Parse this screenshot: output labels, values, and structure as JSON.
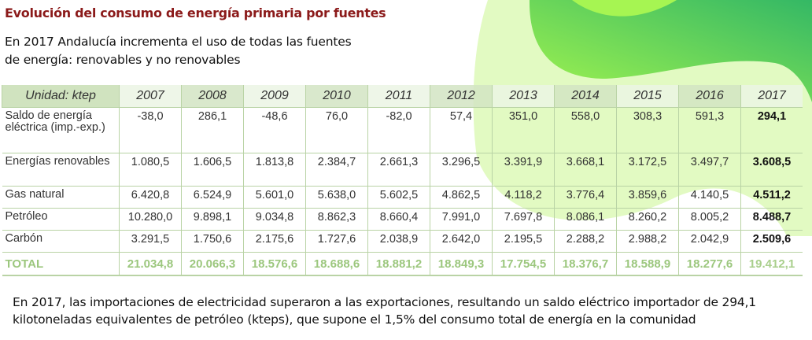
{
  "title": "Evolución del consumo de energía primaria por fuentes",
  "subtitle": [
    "En 2017 Andalucía incrementa el uso de todas las fuentes",
    "de energía: renovables y no renovables"
  ],
  "table": {
    "unit_header": "Unidad: ktep",
    "years": [
      "2007",
      "2008",
      "2009",
      "2010",
      "2011",
      "2012",
      "2013",
      "2014",
      "2015",
      "2016",
      "2017"
    ],
    "rows": [
      {
        "label": "Saldo de energía eléctrica (imp.-exp.)",
        "values": [
          "-38,0",
          "286,1",
          "-48,6",
          "76,0",
          "-82,0",
          "57,4",
          "351,0",
          "558,0",
          "308,3",
          "591,3",
          "294,1"
        ]
      },
      {
        "label": "Energías renovables",
        "values": [
          "1.080,5",
          "1.606,5",
          "1.813,8",
          "2.384,7",
          "2.661,3",
          "3.296,5",
          "3.391,9",
          "3.668,1",
          "3.172,5",
          "3.497,7",
          "3.608,5"
        ]
      },
      {
        "label": "Gas natural",
        "values": [
          "6.420,8",
          "6.524,9",
          "5.601,0",
          "5.638,0",
          "5.602,5",
          "4.862,5",
          "4.118,2",
          "3.776,4",
          "3.859,6",
          "4.140,5",
          "4.511,2"
        ]
      },
      {
        "label": "Petróleo",
        "values": [
          "10.280,0",
          "9.898,1",
          "9.034,8",
          "8.862,3",
          "8.660,4",
          "7.991,0",
          "7.697,8",
          "8.086,1",
          "8.260,2",
          "8.005,2",
          "8.488,7"
        ]
      },
      {
        "label": "Carbón",
        "values": [
          "3.291,5",
          "1.750,6",
          "2.175,6",
          "1.727,6",
          "2.038,9",
          "2.642,0",
          "2.195,5",
          "2.288,2",
          "2.988,2",
          "2.042,9",
          "2.509,6"
        ]
      },
      {
        "label": "TOTAL",
        "values": [
          "21.034,8",
          "20.066,3",
          "18.576,6",
          "18.688,6",
          "18.881,2",
          "18.849,3",
          "17.754,5",
          "18.376,7",
          "18.588,9",
          "18.277,6",
          "19.412,1"
        ]
      }
    ]
  },
  "footnote": [
    "En 2017, las importaciones de electricidad superaron a las exportaciones, resultando un saldo eléctrico importador de 294,1",
    "kilotoneladas equivalentes de petróleo (kteps), que supone el 1,5% del consumo total de energía en la comunidad"
  ],
  "colors": {
    "title": "#8b1a1a",
    "total": "#9cc77e",
    "border": "#b9d3a5",
    "blob_light": "#e2fac2",
    "blob_mid": "#9ef24f",
    "blob_dark": "#3cba62"
  }
}
